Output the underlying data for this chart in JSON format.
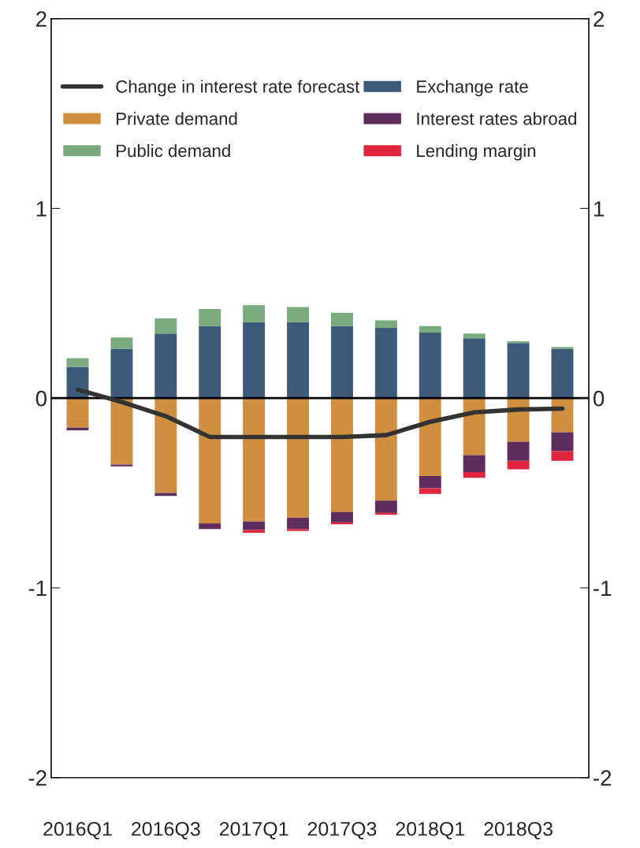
{
  "chart_data": {
    "type": "bar",
    "stacked": true,
    "categories": [
      "2016Q1",
      null,
      "2016Q3",
      null,
      "2017Q1",
      null,
      "2017Q3",
      null,
      "2018Q1",
      null,
      "2018Q3",
      null
    ],
    "series": [
      {
        "name": "Change in interest rate forecast",
        "type": "line",
        "color": "#333333",
        "values": [
          0.045,
          -0.02,
          -0.095,
          -0.205,
          -0.205,
          -0.205,
          -0.205,
          -0.195,
          -0.125,
          -0.075,
          -0.06,
          -0.055
        ]
      },
      {
        "name": "Exchange rate",
        "color": "#3d5a7a",
        "values": [
          0.165,
          0.26,
          0.34,
          0.38,
          0.4,
          0.4,
          0.38,
          0.37,
          0.345,
          0.315,
          0.29,
          0.26
        ]
      },
      {
        "name": "Private demand",
        "color": "#d08f40",
        "values": [
          -0.155,
          -0.35,
          -0.5,
          -0.66,
          -0.65,
          -0.63,
          -0.6,
          -0.54,
          -0.41,
          -0.3,
          -0.23,
          -0.18
        ]
      },
      {
        "name": "Interest rates abroad",
        "color": "#5e2d5e",
        "values": [
          -0.015,
          -0.01,
          -0.015,
          -0.03,
          -0.045,
          -0.06,
          -0.055,
          -0.065,
          -0.065,
          -0.09,
          -0.1,
          -0.1
        ]
      },
      {
        "name": "Public demand",
        "color": "#7aab7e",
        "values": [
          0.045,
          0.06,
          0.08,
          0.09,
          0.09,
          0.08,
          0.07,
          0.04,
          0.035,
          0.025,
          0.01,
          0.01
        ]
      },
      {
        "name": "Lending margin",
        "color": "#e0263f",
        "values": [
          0,
          0,
          0,
          0,
          -0.015,
          -0.01,
          -0.01,
          -0.01,
          -0.03,
          -0.03,
          -0.045,
          -0.05
        ]
      }
    ],
    "ylim": [
      -2,
      2
    ],
    "yticks": [
      -2,
      -1,
      0,
      1,
      2
    ],
    "y2lim": [
      -2,
      2
    ],
    "y2ticks": [
      -2,
      -1,
      0,
      1,
      2
    ],
    "ref_lines": [
      {
        "axis": "y",
        "value": 0,
        "color": "#000000"
      }
    ],
    "legend": "top",
    "grid": false
  }
}
